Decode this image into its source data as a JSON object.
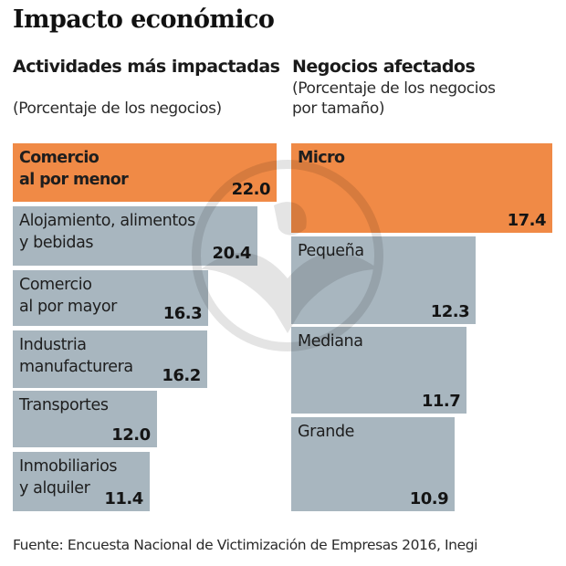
{
  "title": "Impacto económico",
  "colors": {
    "highlight": "#f08a46",
    "default": "#a8b6bf",
    "text": "#1b1b1b"
  },
  "chart_data": [
    {
      "type": "bar",
      "orientation": "horizontal",
      "title": "Actividades más impactadas",
      "subtitle": "(Porcentaje de los negocios)",
      "xlabel": "",
      "ylabel": "",
      "xlim": [
        0,
        22.0
      ],
      "grid": false,
      "categories": [
        "Comercio\nal por menor",
        "Alojamiento, alimentos\ny bebidas",
        "Comercio\nal por mayor",
        "Industria\nmanufacturera",
        "Transportes",
        "Inmobiliarios\ny alquiler"
      ],
      "values": [
        22.0,
        20.4,
        16.3,
        16.2,
        12.0,
        11.4
      ],
      "value_labels": [
        "22.0",
        "20.4",
        "16.3",
        "16.2",
        "12.0",
        "11.4"
      ],
      "highlight_index": 0
    },
    {
      "type": "bar",
      "orientation": "horizontal",
      "title": "Negocios afectados",
      "subtitle": "(Porcentaje de los negocios\npor tamaño)",
      "xlabel": "",
      "ylabel": "",
      "xlim": [
        0,
        17.4
      ],
      "grid": false,
      "categories": [
        "Micro",
        "Pequeña",
        "Mediana",
        "Grande"
      ],
      "values": [
        17.4,
        12.3,
        11.7,
        10.9
      ],
      "value_labels": [
        "17.4",
        "12.3",
        "11.7",
        "10.9"
      ],
      "highlight_index": 0
    }
  ],
  "source": "Fuente: Encuesta Nacional de Victimización de Empresas 2016, Inegi",
  "watermark_icon": "eagle-emblem-icon"
}
